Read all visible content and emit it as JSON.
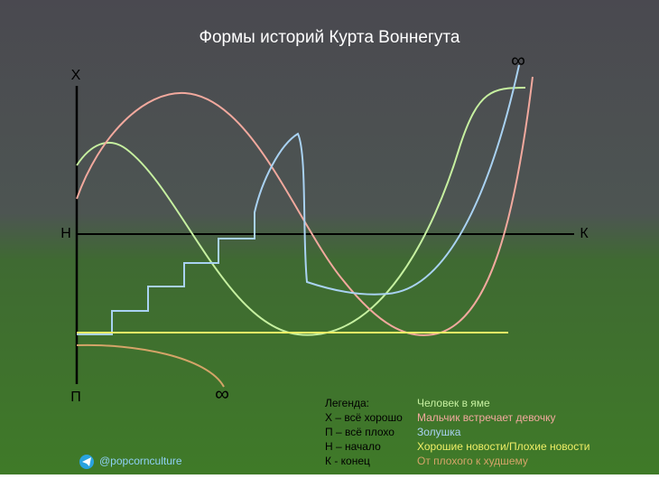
{
  "title": "Формы историй Курта Воннегута",
  "axis": {
    "top": "Х",
    "middle": "Н",
    "bottom": "П",
    "end": "К",
    "infinity_top": "∞",
    "infinity_bottom": "∞"
  },
  "legend": {
    "heading": "Легенда:",
    "keys": [
      "Х – всё хорошо",
      "П – всё плохо",
      "Н – начало",
      "К - конец"
    ],
    "stories": [
      {
        "name": "Человек в яме",
        "color": "#c6f0a0"
      },
      {
        "name": "Мальчик встречает девочку",
        "color": "#f2a99e"
      },
      {
        "name": "Золушка",
        "color": "#a9d2f2"
      },
      {
        "name": "Хорошие новости/Плохие новости",
        "color": "#eeee66"
      },
      {
        "name": "От плохого к худшему",
        "color": "#d4a468"
      }
    ]
  },
  "handle": "@popcornculture"
}
